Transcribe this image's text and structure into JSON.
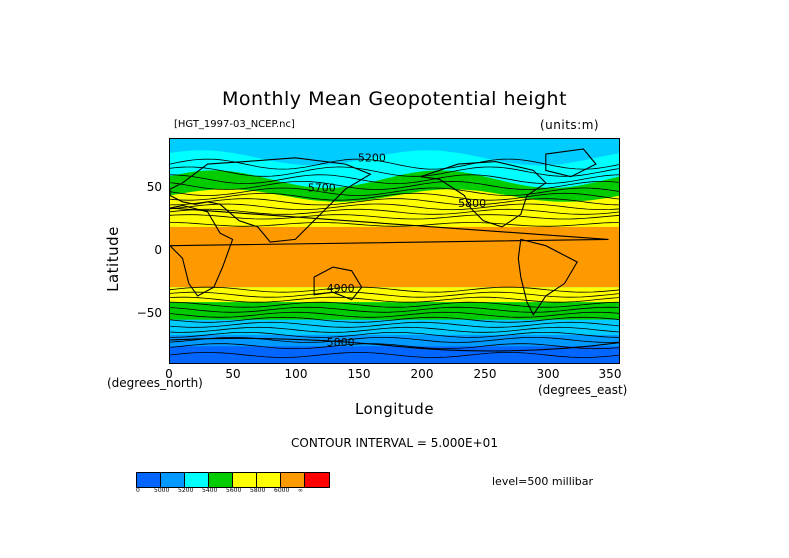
{
  "title": "Monthly Mean Geopotential height",
  "file_label": "[HGT_1997-03_NCEP.nc]",
  "units_label": "(units:m)",
  "ylabel": "Latitude",
  "xlabel": "Longitude",
  "y_axis_units": "(degrees_north)",
  "x_axis_units": "(degrees_east)",
  "contour_interval": "CONTOUR INTERVAL = 5.000E+01",
  "level": "level=500 millibar",
  "map_data": {
    "projection": "cylindrical",
    "variable": "geopotential height",
    "units": "m",
    "lon_range": [
      0,
      360
    ],
    "lat_range": [
      -90,
      90
    ],
    "x_ticks": [
      "0",
      "50",
      "100",
      "150",
      "200",
      "250",
      "300",
      "350"
    ],
    "y_ticks": [
      "50",
      "0",
      "−50"
    ],
    "contour_labels": [
      "5200",
      "5700",
      "5800",
      "4900",
      "5800"
    ],
    "shading_bands": [
      {
        "lat_min": 13,
        "lat_max": 27,
        "color": "#ffff00"
      },
      {
        "lat_min": 18,
        "lat_max": 33,
        "color": "#ffff00"
      },
      {
        "lat_min": -28,
        "lat_max": 20,
        "color": "#ff9900"
      },
      {
        "lat_min": -40,
        "lat_max": -28,
        "color": "#ffff00"
      },
      {
        "lat_min": -54,
        "lat_max": -40,
        "color": "#00cc00"
      },
      {
        "lat_min": -66,
        "lat_max": -54,
        "color": "#00ccff"
      },
      {
        "lat_min": -75,
        "lat_max": -66,
        "color": "#0099ff"
      },
      {
        "lat_min": -90,
        "lat_max": -75,
        "color": "#0066ff"
      }
    ]
  },
  "colorbar": {
    "colors": [
      "#0066ff",
      "#0099ff",
      "#00ffff",
      "#00cc00",
      "#ffff00",
      "#ffff00",
      "#ff9900",
      "#ff0000"
    ],
    "labels": [
      "0",
      "5000",
      "5200",
      "5400",
      "5600",
      "5800",
      "6000",
      "∞"
    ]
  }
}
